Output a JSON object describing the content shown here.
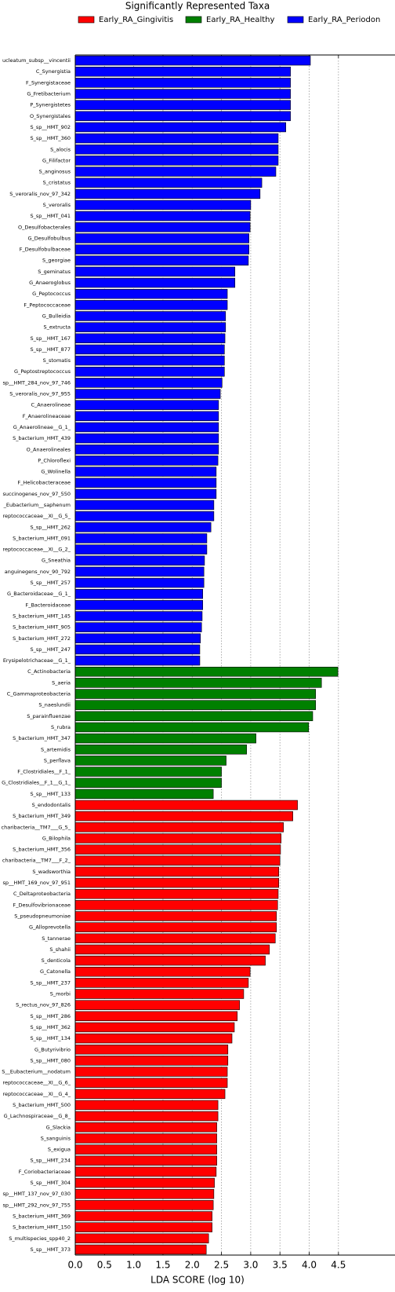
{
  "chart_data": {
    "type": "bar",
    "orientation": "horizontal",
    "title": "Significantly Represented Taxa",
    "x_label": "LDA SCORE (log 10)",
    "xlim": [
      0,
      5.4
    ],
    "xticks": [
      {
        "value": 0,
        "label": "0.0"
      },
      0.5,
      {
        "value": 1,
        "label": "1.0"
      },
      1.5,
      {
        "value": 2,
        "label": "2.0"
      },
      2.5,
      {
        "value": 3,
        "label": "3.0"
      },
      3.5,
      {
        "value": 4,
        "label": "4.0"
      },
      4.5
    ],
    "grid": true,
    "series": [
      {
        "name": "Early_RA_Periodon",
        "color": "#0000ff",
        "categories": [
          "ucleatum_subsp__vincentii",
          "C_Synergistia",
          "F_Synergistaceae",
          "G_Fretibacterium",
          "P_Synergistetes",
          "O_Synergistales",
          "S_sp__HMT_902",
          "S_sp__HMT_360",
          "S_alocis",
          "G_Filifactor",
          "S_anginosus",
          "S_cristatus",
          "S_veroralis_nov_97_342",
          "S_veroralis",
          "S_sp__HMT_041",
          "O_Desulfobacterales",
          "G_Desulfobulbus",
          "F_Desulfobulbaceae",
          "S_georgiae",
          "S_geminatus",
          "G_Anaeroglobus",
          "G_Peptococcus",
          "F_Peptococcaceae",
          "G_Bulleidia",
          "S_extructa",
          "S_sp__HMT_167",
          "S_sp__HMT_877",
          "S_stomatis",
          "G_Peptostreptococcus",
          "sp__HMT_284_nov_97_746",
          "S_veroralis_nov_97_955",
          "C_Anaerolineae",
          "F_Anaerolineaceae",
          "G_Anaerolineae__G_1_",
          "S_bacterium_HMT_439",
          "O_Anaerolineales",
          "P_Chloroflexi",
          "G_Wolinella",
          "F_Helicobacteraceae",
          "succinogenes_nov_97_550",
          "_Eubacterium__saphenum",
          "reptococcaceae__XI__G_5_",
          "S_sp__HMT_262",
          "S_bacterium_HMT_091",
          "reptococcaceae__XI__G_2_",
          "G_Sneathia",
          "anguinegens_nov_90_792",
          "S_sp__HMT_257",
          "G_Bacteroidaceae__G_1_",
          "F_Bacteroidaceae",
          "S_bacterium_HMT_145",
          "S_bacterium_HMT_905",
          "S_bacterium_HMT_272",
          "S_sp__HMT_247",
          "Erysipelotrichaceae__G_1_"
        ],
        "values": [
          4.02,
          3.68,
          3.68,
          3.68,
          3.68,
          3.68,
          3.6,
          3.47,
          3.47,
          3.47,
          3.43,
          3.19,
          3.16,
          3.0,
          2.99,
          2.99,
          2.97,
          2.97,
          2.96,
          2.73,
          2.73,
          2.6,
          2.6,
          2.57,
          2.57,
          2.56,
          2.55,
          2.55,
          2.55,
          2.51,
          2.48,
          2.45,
          2.45,
          2.45,
          2.45,
          2.45,
          2.44,
          2.41,
          2.41,
          2.41,
          2.37,
          2.37,
          2.32,
          2.25,
          2.25,
          2.21,
          2.2,
          2.2,
          2.18,
          2.18,
          2.17,
          2.16,
          2.14,
          2.13,
          2.13
        ]
      },
      {
        "name": "Early_RA_Healthy",
        "color": "#008000",
        "categories": [
          "C_Actinobacteria",
          "S_aeria",
          "C_Gammaproteobacteria",
          "S_naeslundii",
          "S_parainfluenzae",
          "S_rubra",
          "S_bacterium_HMT_347",
          "S_artemidis",
          "S_perflava",
          "F_Clostridiales__F_1_",
          "G_Clostridiales__F_1__G_1_",
          "S_sp__HMT_133"
        ],
        "values": [
          4.49,
          4.21,
          4.11,
          4.11,
          4.06,
          3.99,
          3.09,
          2.93,
          2.58,
          2.5,
          2.5,
          2.36
        ]
      },
      {
        "name": "Early_RA_Gingivitis",
        "color": "#ff0000",
        "categories": [
          "S_endodontalis",
          "S_bacterium_HMT_349",
          "charibacteria__TM7___G_5_",
          "G_Bilophila",
          "S_bacterium_HMT_356",
          "charibacteria__TM7___F_2_",
          "S_wadsworthia",
          "sp__HMT_169_nov_97_951",
          "C_Deltaproteobacteria",
          "F_Desulfovibrionaceae",
          "S_pseudopneumoniae",
          "G_Alloprevotella",
          "S_tannerae",
          "S_shahii",
          "S_denticola",
          "G_Catonella",
          "S_sp__HMT_237",
          "S_morbi",
          "S_rectus_nov_97_826",
          "S_sp__HMT_286",
          "S_sp__HMT_362",
          "S_sp__HMT_134",
          "G_Butyrivibrio",
          "S_sp__HMT_080",
          "S__Eubacterium__nodatum",
          "reptococcaceae__XI__G_6_",
          "reptococcaceae__XI__G_4_",
          "S_bacterium_HMT_500",
          "G_Lachnospiraceae__G_8_",
          "G_Slackia",
          "S_sanguinis",
          "S_exigua",
          "S_sp__HMT_234",
          "F_Coriobacteriaceae",
          "S_sp__HMT_304",
          "sp__HMT_137_nov_97_030",
          "sp__HMT_292_nov_97_755",
          "S_bacterium_HMT_369",
          "S_bacterium_HMT_150",
          "S_multispecies_spp40_2",
          "S_sp__HMT_373"
        ],
        "values": [
          3.8,
          3.72,
          3.56,
          3.52,
          3.51,
          3.5,
          3.48,
          3.48,
          3.47,
          3.46,
          3.44,
          3.44,
          3.42,
          3.32,
          3.25,
          2.99,
          2.96,
          2.88,
          2.81,
          2.77,
          2.72,
          2.68,
          2.61,
          2.61,
          2.6,
          2.6,
          2.56,
          2.44,
          2.44,
          2.42,
          2.42,
          2.42,
          2.42,
          2.41,
          2.38,
          2.37,
          2.36,
          2.34,
          2.34,
          2.28,
          2.24
        ]
      }
    ],
    "legend_order": [
      2,
      1,
      0
    ]
  }
}
